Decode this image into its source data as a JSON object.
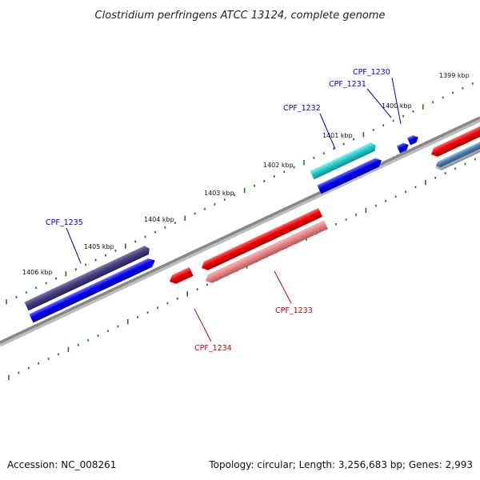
{
  "title": "Clostridium perfringens ATCC 13124, complete genome",
  "ticks": [
    {
      "label": "1399 kbp"
    },
    {
      "label": "1400 kbp"
    },
    {
      "label": "1401 kbp"
    },
    {
      "label": "1402 kbp"
    },
    {
      "label": "1403 kbp"
    },
    {
      "label": "1404 kbp"
    },
    {
      "label": "1405 kbp"
    },
    {
      "label": "1406 kbp"
    }
  ],
  "genes": [
    {
      "label": "CPF_1230",
      "color": "#0000cc",
      "strand": "forward"
    },
    {
      "label": "CPF_1231",
      "color": "#0000cc",
      "strand": "forward"
    },
    {
      "label": "CPF_1232",
      "color": "#0000cc",
      "strand": "forward"
    },
    {
      "label": "CPF_1233",
      "color": "#cc0000",
      "strand": "reverse"
    },
    {
      "label": "CPF_1234",
      "color": "#cc0000",
      "strand": "reverse"
    },
    {
      "label": "CPF_1235",
      "color": "#0000cc",
      "strand": "forward"
    }
  ],
  "footer": {
    "accession": "Accession: NC_008261",
    "summary": "Topology: circular; Length: 3,256,683 bp; Genes: 2,993"
  },
  "colors": {
    "backbone": "#888888",
    "tick_mark": "#1a7a1a",
    "forward_gene": "#0000ff",
    "reverse_gene": "#ff0000",
    "cog_cyan": "#2ecfcf",
    "cog_navy": "#48407f",
    "cog_pink": "#e98a8a",
    "cog_steel": "#4a7fb3"
  }
}
